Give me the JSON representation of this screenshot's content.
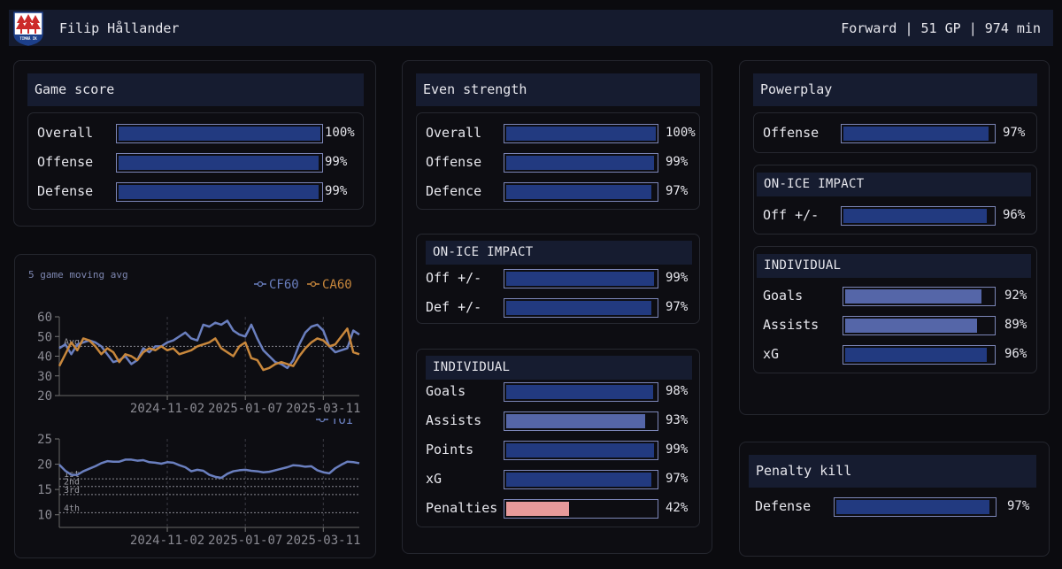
{
  "header": {
    "player_name": "Filip Hållander",
    "meta": "Forward | 51 GP | 974 min",
    "logo_text": "TIMRÅ IK"
  },
  "colors": {
    "bar_blue": "#223a80",
    "bar_light": "#5566a8",
    "bar_pink": "#e79a9a",
    "cf60": "#6a7fbf",
    "ca60": "#c8873c",
    "toi": "#6a7fbf"
  },
  "game_score": {
    "title": "Game score",
    "rows": [
      {
        "label": "Overall",
        "value": 100,
        "text": "100%"
      },
      {
        "label": "Offense",
        "value": 99,
        "text": "99%"
      },
      {
        "label": "Defense",
        "value": 99,
        "text": "99%"
      }
    ]
  },
  "even_strength": {
    "title": "Even strength",
    "rows": [
      {
        "label": "Overall",
        "value": 100,
        "text": "100%"
      },
      {
        "label": "Offense",
        "value": 99,
        "text": "99%"
      },
      {
        "label": "Defence",
        "value": 97,
        "text": "97%"
      }
    ],
    "impact": {
      "title": "ON-ICE IMPACT",
      "rows": [
        {
          "label": "Off +/-",
          "value": 99,
          "text": "99%"
        },
        {
          "label": "Def +/-",
          "value": 97,
          "text": "97%"
        }
      ]
    },
    "individual": {
      "title": "INDIVIDUAL",
      "rows": [
        {
          "label": "Goals",
          "value": 98,
          "text": "98%"
        },
        {
          "label": "Assists",
          "value": 93,
          "text": "93%"
        },
        {
          "label": "Points",
          "value": 99,
          "text": "99%"
        },
        {
          "label": "xG",
          "value": 97,
          "text": "97%"
        },
        {
          "label": "Penalties",
          "value": 42,
          "text": "42%"
        }
      ]
    }
  },
  "powerplay": {
    "title": "Powerplay",
    "rows": [
      {
        "label": "Offense",
        "value": 97,
        "text": "97%"
      }
    ],
    "impact": {
      "title": "ON-ICE IMPACT",
      "rows": [
        {
          "label": "Off +/-",
          "value": 96,
          "text": "96%"
        }
      ]
    },
    "individual": {
      "title": "INDIVIDUAL",
      "rows": [
        {
          "label": "Goals",
          "value": 92,
          "text": "92%"
        },
        {
          "label": "Assists",
          "value": 89,
          "text": "89%"
        },
        {
          "label": "xG",
          "value": 96,
          "text": "96%"
        }
      ]
    }
  },
  "penalty_kill": {
    "title": "Penalty kill",
    "rows": [
      {
        "label": "Defense",
        "value": 97,
        "text": "97%"
      }
    ]
  },
  "chart_data": [
    {
      "type": "line",
      "title": "5 game moving avg",
      "ylim": [
        20,
        60
      ],
      "yticks": [
        20,
        30,
        40,
        50,
        60
      ],
      "xlim": [
        0,
        50
      ],
      "xticks": [
        {
          "x": 18,
          "label": "2024-11-02"
        },
        {
          "x": 31,
          "label": "2025-01-07"
        },
        {
          "x": 44,
          "label": "2025-03-11"
        }
      ],
      "hlines": [
        {
          "y": 45,
          "label": "Avg"
        }
      ],
      "legend_position": "top-right",
      "series": [
        {
          "name": "CF60",
          "values": [
            44,
            46,
            41,
            46,
            47,
            48,
            47,
            45,
            41,
            37,
            38,
            40,
            36,
            38,
            44,
            42,
            45,
            45,
            47,
            48,
            50,
            52,
            49,
            48,
            56,
            55,
            57,
            56,
            58,
            53,
            51,
            50,
            56,
            49,
            43,
            40,
            37,
            36,
            34,
            38,
            46,
            52,
            55,
            56,
            53,
            45,
            42,
            43,
            44,
            53,
            51
          ]
        },
        {
          "name": "CA60",
          "values": [
            35,
            41,
            47,
            43,
            49,
            48,
            45,
            41,
            44,
            42,
            37,
            41,
            40,
            38,
            42,
            44,
            43,
            45,
            43,
            44,
            41,
            42,
            43,
            45,
            46,
            47,
            49,
            44,
            42,
            40,
            45,
            47,
            39,
            38,
            33,
            34,
            36,
            37,
            36,
            35,
            40,
            44,
            47,
            49,
            48,
            45,
            46,
            50,
            54,
            42,
            41
          ]
        }
      ]
    },
    {
      "type": "line",
      "title": "",
      "ylim": [
        7.5,
        25
      ],
      "yticks": [
        10,
        15,
        20,
        25
      ],
      "xlim": [
        0,
        50
      ],
      "xticks": [
        {
          "x": 18,
          "label": "2024-11-02"
        },
        {
          "x": 31,
          "label": "2025-01-07"
        },
        {
          "x": 44,
          "label": "2025-03-11"
        }
      ],
      "hlines": [
        {
          "y": 17.1,
          "label": "1st"
        },
        {
          "y": 15.6,
          "label": "2nd"
        },
        {
          "y": 14.0,
          "label": "3rd"
        },
        {
          "y": 10.4,
          "label": "4th"
        }
      ],
      "legend_position": "top-right",
      "series": [
        {
          "name": "TOI",
          "values": [
            19.9,
            18.7,
            17.9,
            17.9,
            18.6,
            19.1,
            19.6,
            20.2,
            20.6,
            20.5,
            20.5,
            20.9,
            20.9,
            20.7,
            20.8,
            20.4,
            20.3,
            20.1,
            20.4,
            20.3,
            19.8,
            19.4,
            18.6,
            18.9,
            18.7,
            17.9,
            17.5,
            17.3,
            18.1,
            18.6,
            18.8,
            18.9,
            18.7,
            18.6,
            18.4,
            18.5,
            18.8,
            19.1,
            19.4,
            19.8,
            19.7,
            19.5,
            19.6,
            18.8,
            18.4,
            18.2,
            19.2,
            19.9,
            20.5,
            20.4,
            20.2
          ]
        }
      ]
    }
  ]
}
